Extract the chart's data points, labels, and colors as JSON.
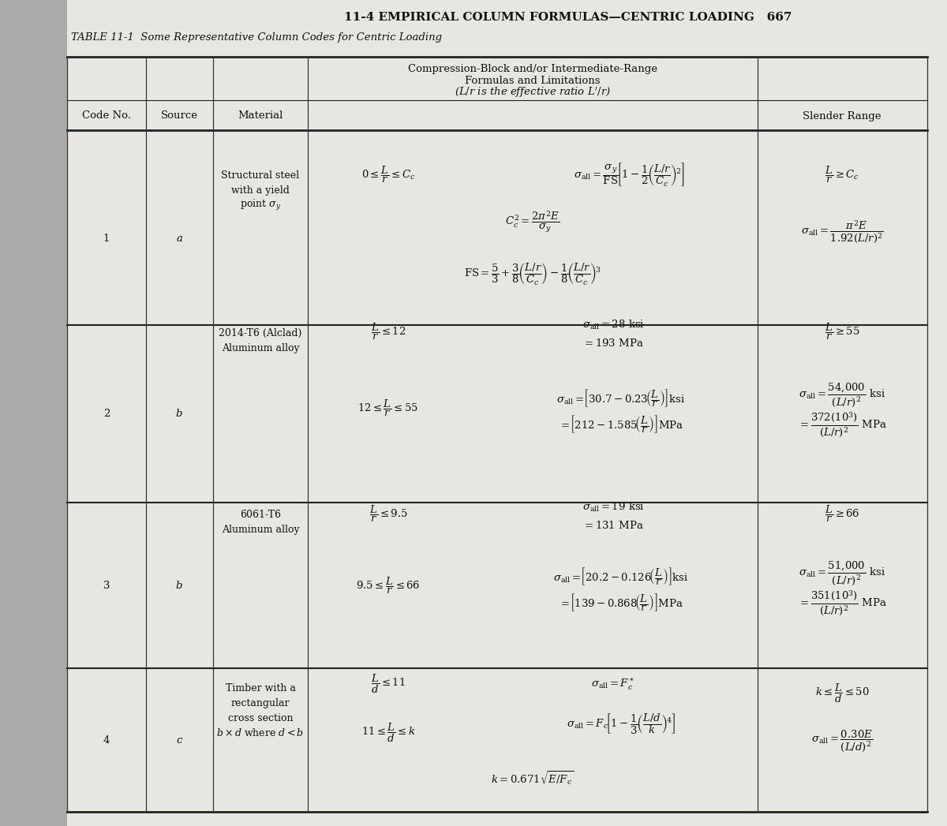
{
  "page_header": "11-4 EMPIRICAL COLUMN FORMULAS—CENTRIC LOADING   667",
  "table_title": "TABLE 11-1  Some Representative Column Codes for Centric Loading",
  "bg_color": "#c8c8c8",
  "page_color": "#e8e6e3",
  "rows": [
    {
      "code": "1",
      "source": "a",
      "material": [
        "Structural steel",
        "with a yield",
        "point $\\sigma_y$"
      ]
    },
    {
      "code": "2",
      "source": "b",
      "material": [
        "2014-T6 (Alclad)",
        "Aluminum alloy"
      ]
    },
    {
      "code": "3",
      "source": "b",
      "material": [
        "6061-T6",
        "Aluminum alloy"
      ]
    },
    {
      "code": "4",
      "source": "c",
      "material": [
        "Timber with a",
        "rectangular",
        "cross section",
        "$b \\times d$ where $d < b$"
      ]
    }
  ]
}
